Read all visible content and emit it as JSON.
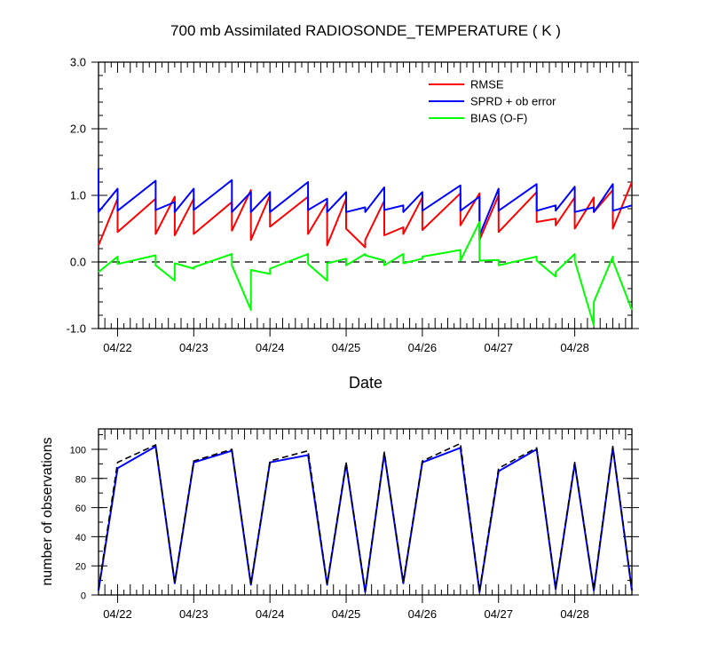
{
  "chart_data": [
    {
      "type": "line",
      "title": "700 mb Assimilated RADIOSONDE_TEMPERATURE ( K )",
      "xlabel": "Date",
      "ylabel": "",
      "ylim": [
        -1.0,
        3.0
      ],
      "yticks": [
        "-1.0",
        "0.0",
        "1.0",
        "2.0",
        "3.0"
      ],
      "xlim": [
        0,
        84
      ],
      "xtick_labels": [
        {
          "x": 3,
          "label": "04/22"
        },
        {
          "x": 15,
          "label": "04/23"
        },
        {
          "x": 27,
          "label": "04/24"
        },
        {
          "x": 39,
          "label": "04/25"
        },
        {
          "x": 51,
          "label": "04/26"
        },
        {
          "x": 63,
          "label": "04/27"
        },
        {
          "x": 75,
          "label": "04/28"
        }
      ],
      "legend_position": "top-right",
      "zero_line": true,
      "series": [
        {
          "name": "RMSE",
          "color": "#ff0000",
          "points": [
            [
              0,
              0.25
            ],
            [
              3,
              0.95
            ],
            [
              3,
              0.45
            ],
            [
              9,
              0.95
            ],
            [
              9,
              0.42
            ],
            [
              12,
              0.98
            ],
            [
              12,
              0.4
            ],
            [
              15,
              0.95
            ],
            [
              15,
              0.42
            ],
            [
              21,
              0.9
            ],
            [
              21,
              0.47
            ],
            [
              24,
              1.08
            ],
            [
              24,
              0.33
            ],
            [
              27,
              1.0
            ],
            [
              27,
              0.53
            ],
            [
              33,
              0.98
            ],
            [
              33,
              0.42
            ],
            [
              36,
              0.9
            ],
            [
              36,
              0.25
            ],
            [
              39,
              0.95
            ],
            [
              39,
              0.5
            ],
            [
              42,
              0.22
            ],
            [
              42,
              0.33
            ],
            [
              45,
              0.92
            ],
            [
              45,
              0.4
            ],
            [
              48,
              0.52
            ],
            [
              48,
              0.42
            ],
            [
              51,
              0.97
            ],
            [
              51,
              0.48
            ],
            [
              57,
              1.03
            ],
            [
              57,
              0.55
            ],
            [
              60,
              1.03
            ],
            [
              60,
              0.33
            ],
            [
              63,
              1.0
            ],
            [
              63,
              0.45
            ],
            [
              69,
              1.05
            ],
            [
              69,
              0.6
            ],
            [
              72,
              0.65
            ],
            [
              72,
              0.55
            ],
            [
              75,
              0.97
            ],
            [
              75,
              0.5
            ],
            [
              78,
              0.97
            ],
            [
              78,
              0.75
            ],
            [
              81,
              1.08
            ],
            [
              81,
              0.5
            ],
            [
              84,
              1.2
            ]
          ]
        },
        {
          "name": "SPRD + ob error",
          "color": "#0000ff",
          "points": [
            [
              0,
              1.4
            ],
            [
              0,
              0.75
            ],
            [
              3,
              1.1
            ],
            [
              3,
              0.77
            ],
            [
              9,
              1.22
            ],
            [
              9,
              0.78
            ],
            [
              12,
              0.9
            ],
            [
              12,
              0.75
            ],
            [
              15,
              1.1
            ],
            [
              15,
              0.78
            ],
            [
              21,
              1.23
            ],
            [
              21,
              0.75
            ],
            [
              24,
              1.05
            ],
            [
              24,
              0.75
            ],
            [
              27,
              1.05
            ],
            [
              27,
              0.75
            ],
            [
              33,
              1.2
            ],
            [
              33,
              0.78
            ],
            [
              36,
              0.95
            ],
            [
              36,
              0.75
            ],
            [
              39,
              1.05
            ],
            [
              39,
              0.75
            ],
            [
              42,
              0.82
            ],
            [
              42,
              0.75
            ],
            [
              45,
              1.12
            ],
            [
              45,
              0.78
            ],
            [
              48,
              0.85
            ],
            [
              48,
              0.75
            ],
            [
              51,
              1.05
            ],
            [
              51,
              0.77
            ],
            [
              57,
              1.15
            ],
            [
              57,
              0.77
            ],
            [
              60,
              0.98
            ],
            [
              60,
              0.4
            ],
            [
              63,
              1.1
            ],
            [
              63,
              0.77
            ],
            [
              69,
              1.17
            ],
            [
              69,
              0.77
            ],
            [
              72,
              0.85
            ],
            [
              72,
              0.77
            ],
            [
              75,
              1.13
            ],
            [
              75,
              0.75
            ],
            [
              78,
              0.82
            ],
            [
              78,
              0.75
            ],
            [
              81,
              1.17
            ],
            [
              81,
              0.77
            ],
            [
              84,
              0.85
            ]
          ]
        },
        {
          "name": "BIAS (O-F)",
          "color": "#00ff00",
          "points": [
            [
              0,
              -0.15
            ],
            [
              3,
              0.08
            ],
            [
              3,
              -0.03
            ],
            [
              9,
              0.1
            ],
            [
              9,
              -0.05
            ],
            [
              12,
              -0.28
            ],
            [
              12,
              -0.02
            ],
            [
              15,
              -0.1
            ],
            [
              15,
              -0.08
            ],
            [
              21,
              0.12
            ],
            [
              21,
              -0.05
            ],
            [
              24,
              -0.72
            ],
            [
              24,
              -0.12
            ],
            [
              27,
              -0.18
            ],
            [
              27,
              -0.1
            ],
            [
              33,
              0.12
            ],
            [
              33,
              -0.03
            ],
            [
              36,
              -0.28
            ],
            [
              36,
              -0.02
            ],
            [
              39,
              0.05
            ],
            [
              39,
              -0.05
            ],
            [
              42,
              0.12
            ],
            [
              42,
              0.1
            ],
            [
              45,
              0.02
            ],
            [
              45,
              -0.05
            ],
            [
              48,
              0.12
            ],
            [
              48,
              -0.02
            ],
            [
              51,
              0.05
            ],
            [
              51,
              0.08
            ],
            [
              57,
              0.18
            ],
            [
              57,
              0.02
            ],
            [
              60,
              0.6
            ],
            [
              60,
              0.02
            ],
            [
              63,
              0.03
            ],
            [
              63,
              -0.05
            ],
            [
              69,
              0.08
            ],
            [
              69,
              0.02
            ],
            [
              72,
              -0.22
            ],
            [
              72,
              -0.15
            ],
            [
              75,
              0.12
            ],
            [
              75,
              0.02
            ],
            [
              78,
              -0.95
            ],
            [
              78,
              -0.6
            ],
            [
              81,
              0.08
            ],
            [
              81,
              0.02
            ],
            [
              84,
              -0.72
            ]
          ]
        }
      ]
    },
    {
      "type": "line",
      "title": "",
      "xlabel": "",
      "ylabel": "number of observations",
      "ylim": [
        0,
        114
      ],
      "yticks": [
        "0",
        "20",
        "40",
        "60",
        "80",
        "100"
      ],
      "xlim": [
        0,
        84
      ],
      "xtick_labels": [
        {
          "x": 3,
          "label": "04/22"
        },
        {
          "x": 15,
          "label": "04/23"
        },
        {
          "x": 27,
          "label": "04/24"
        },
        {
          "x": 39,
          "label": "04/25"
        },
        {
          "x": 51,
          "label": "04/26"
        },
        {
          "x": 63,
          "label": "04/27"
        },
        {
          "x": 75,
          "label": "04/28"
        }
      ],
      "series": [
        {
          "color": "#0000ff",
          "style": "solid",
          "points": [
            [
              0,
              3
            ],
            [
              3,
              87
            ],
            [
              9,
              102
            ],
            [
              12,
              8
            ],
            [
              15,
              91
            ],
            [
              21,
              99
            ],
            [
              24,
              7
            ],
            [
              27,
              91
            ],
            [
              33,
              96
            ],
            [
              36,
              7
            ],
            [
              39,
              90
            ],
            [
              42,
              2
            ],
            [
              45,
              97
            ],
            [
              48,
              8
            ],
            [
              51,
              91
            ],
            [
              57,
              101
            ],
            [
              60,
              2
            ],
            [
              63,
              85
            ],
            [
              69,
              100
            ],
            [
              72,
              4
            ],
            [
              75,
              90
            ],
            [
              78,
              3
            ],
            [
              81,
              101
            ],
            [
              84,
              3
            ]
          ]
        },
        {
          "color": "#000000",
          "style": "dashed",
          "points": [
            [
              0,
              4
            ],
            [
              3,
              91
            ],
            [
              9,
              103
            ],
            [
              12,
              9
            ],
            [
              15,
              92
            ],
            [
              21,
              100
            ],
            [
              24,
              8
            ],
            [
              27,
              92
            ],
            [
              33,
              99
            ],
            [
              36,
              8
            ],
            [
              39,
              91
            ],
            [
              42,
              3
            ],
            [
              45,
              98
            ],
            [
              48,
              9
            ],
            [
              51,
              92
            ],
            [
              57,
              104
            ],
            [
              60,
              3
            ],
            [
              63,
              87
            ],
            [
              69,
              101
            ],
            [
              72,
              5
            ],
            [
              75,
              91
            ],
            [
              78,
              4
            ],
            [
              81,
              102
            ],
            [
              84,
              4
            ]
          ]
        }
      ]
    }
  ]
}
